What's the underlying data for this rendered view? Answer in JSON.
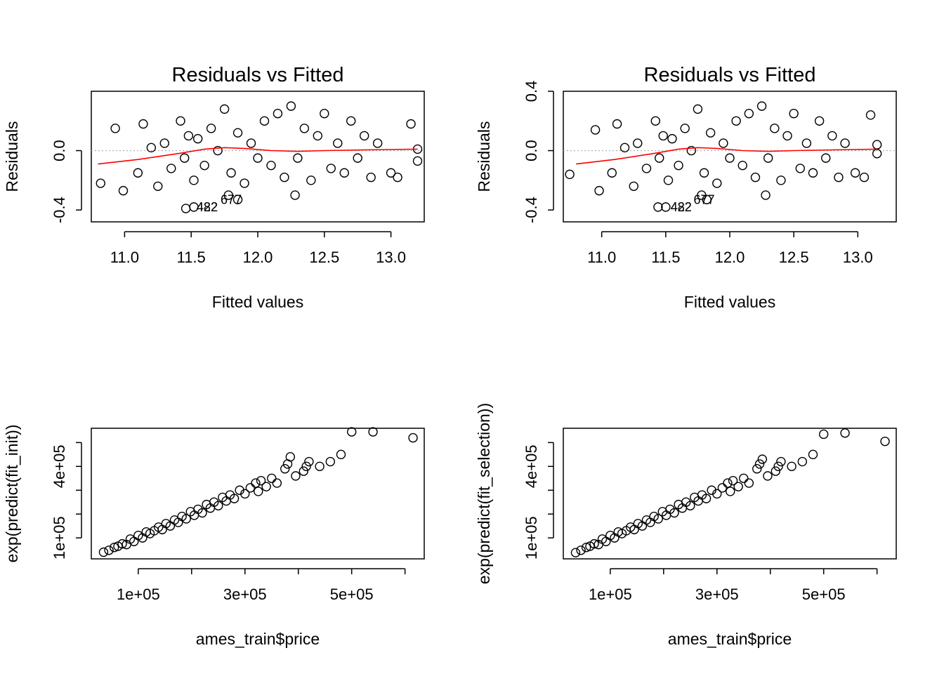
{
  "chart_data": [
    {
      "type": "scatter",
      "title": "Residuals vs Fitted",
      "xlabel": "Fitted values",
      "ylabel": "Residuals",
      "xlim": [
        10.75,
        13.25
      ],
      "ylim": [
        -0.48,
        0.4
      ],
      "xticks": [
        11.0,
        11.5,
        12.0,
        12.5,
        13.0
      ],
      "xtick_labels": [
        "11.0",
        "11.5",
        "12.0",
        "12.5",
        "13.0"
      ],
      "yticks": [
        -0.4,
        0.0
      ],
      "ytick_labels": [
        "-0.4",
        "0.0"
      ],
      "reference_line": {
        "y": 0,
        "style": "dotted",
        "color": "#aaaaaa"
      },
      "smooth": {
        "color": "#ff0000",
        "x": [
          10.8,
          11.1,
          11.4,
          11.6,
          11.75,
          11.9,
          12.1,
          12.3,
          12.5,
          12.8,
          13.2
        ],
        "y": [
          -0.09,
          -0.06,
          -0.02,
          0.01,
          0.02,
          0.015,
          0.0,
          -0.005,
          0.0,
          0.005,
          0.01
        ]
      },
      "annotations": [
        {
          "text": "677",
          "x": 11.8,
          "y": -0.36
        },
        {
          "text": "482",
          "x": 11.62,
          "y": -0.41
        },
        {
          "text": "422",
          "x": 11.62,
          "y": -0.41
        }
      ],
      "series": [
        {
          "x": [
            10.82,
            10.93,
            10.99,
            11.1,
            11.14,
            11.2,
            11.25,
            11.3,
            11.35,
            11.42,
            11.45,
            11.48,
            11.52,
            11.55,
            11.6,
            11.65,
            11.7,
            11.75,
            11.8,
            11.85,
            11.9,
            11.95,
            12.0,
            12.05,
            12.1,
            12.15,
            12.2,
            12.25,
            12.3,
            12.35,
            12.4,
            12.45,
            12.5,
            12.55,
            12.6,
            12.65,
            12.7,
            12.75,
            12.8,
            12.85,
            12.9,
            13.0,
            13.05,
            13.15,
            13.2,
            13.2,
            11.46,
            11.52,
            11.85,
            11.78,
            12.28
          ],
          "y": [
            -0.22,
            0.15,
            -0.27,
            -0.15,
            0.18,
            0.02,
            -0.24,
            0.05,
            -0.12,
            0.2,
            -0.05,
            0.1,
            -0.2,
            0.08,
            -0.1,
            0.15,
            0.0,
            0.28,
            -0.15,
            0.12,
            -0.22,
            0.05,
            -0.05,
            0.2,
            -0.1,
            0.25,
            -0.18,
            0.3,
            -0.05,
            0.15,
            -0.2,
            0.1,
            0.25,
            -0.12,
            0.05,
            -0.15,
            0.2,
            -0.05,
            0.1,
            -0.18,
            0.05,
            -0.15,
            -0.18,
            0.18,
            0.01,
            -0.07,
            -0.39,
            -0.38,
            -0.33,
            -0.3,
            -0.3
          ]
        }
      ]
    },
    {
      "type": "scatter",
      "title": "Residuals vs Fitted",
      "xlabel": "Fitted values",
      "ylabel": "Residuals",
      "xlim": [
        10.7,
        13.3
      ],
      "ylim": [
        -0.48,
        0.4
      ],
      "xticks": [
        11.0,
        11.5,
        12.0,
        12.5,
        13.0
      ],
      "xtick_labels": [
        "11.0",
        "11.5",
        "12.0",
        "12.5",
        "13.0"
      ],
      "yticks": [
        -0.4,
        0.0,
        0.4
      ],
      "ytick_labels": [
        "-0.4",
        "0.0",
        "0.4"
      ],
      "reference_line": {
        "y": 0,
        "style": "dotted",
        "color": "#aaaaaa"
      },
      "smooth": {
        "color": "#ff0000",
        "x": [
          10.8,
          11.1,
          11.4,
          11.6,
          11.75,
          11.9,
          12.1,
          12.3,
          12.5,
          12.8,
          13.15
        ],
        "y": [
          -0.09,
          -0.06,
          -0.02,
          0.01,
          0.02,
          0.015,
          0.0,
          -0.005,
          0.0,
          0.005,
          0.01
        ]
      },
      "annotations": [
        {
          "text": "677",
          "x": 11.8,
          "y": -0.36
        },
        {
          "text": "482",
          "x": 11.62,
          "y": -0.41
        },
        {
          "text": "422",
          "x": 11.62,
          "y": -0.41
        }
      ],
      "series": [
        {
          "x": [
            10.75,
            10.95,
            10.98,
            11.08,
            11.12,
            11.18,
            11.25,
            11.28,
            11.35,
            11.42,
            11.45,
            11.48,
            11.52,
            11.55,
            11.6,
            11.65,
            11.7,
            11.75,
            11.8,
            11.85,
            11.9,
            11.95,
            12.0,
            12.05,
            12.1,
            12.15,
            12.2,
            12.25,
            12.3,
            12.35,
            12.4,
            12.45,
            12.5,
            12.55,
            12.6,
            12.65,
            12.7,
            12.75,
            12.8,
            12.85,
            12.9,
            12.98,
            13.05,
            13.1,
            13.15,
            13.15,
            11.44,
            11.5,
            11.82,
            11.78,
            12.28
          ],
          "y": [
            -0.16,
            0.14,
            -0.27,
            -0.15,
            0.18,
            0.02,
            -0.24,
            0.05,
            -0.12,
            0.2,
            -0.05,
            0.1,
            -0.2,
            0.08,
            -0.1,
            0.15,
            0.0,
            0.28,
            -0.15,
            0.12,
            -0.22,
            0.05,
            -0.05,
            0.2,
            -0.1,
            0.25,
            -0.18,
            0.3,
            -0.05,
            0.15,
            -0.2,
            0.1,
            0.25,
            -0.12,
            0.05,
            -0.15,
            0.2,
            -0.05,
            0.1,
            -0.18,
            0.05,
            -0.15,
            -0.18,
            0.24,
            0.04,
            -0.02,
            -0.38,
            -0.38,
            -0.33,
            -0.3,
            -0.3
          ]
        }
      ]
    },
    {
      "type": "scatter",
      "title": "",
      "xlabel": "ames_train$price",
      "ylabel": "exp(predict(fit_init))",
      "xlim": [
        12000,
        636000
      ],
      "ylim": [
        12000,
        560000
      ],
      "xticks": [
        100000,
        200000,
        300000,
        400000,
        500000,
        600000
      ],
      "xtick_labels": [
        "1e+05",
        "",
        "3e+05",
        "",
        "5e+05",
        ""
      ],
      "yticks": [
        100000,
        200000,
        300000,
        400000,
        500000
      ],
      "ytick_labels": [
        "1e+05",
        "",
        "",
        "4e+05",
        ""
      ],
      "series": [
        {
          "x": [
            35000,
            45000,
            55000,
            62000,
            70000,
            78000,
            85000,
            92000,
            100000,
            108000,
            115000,
            122000,
            130000,
            138000,
            145000,
            152000,
            160000,
            168000,
            175000,
            182000,
            190000,
            198000,
            205000,
            212000,
            220000,
            228000,
            235000,
            242000,
            250000,
            258000,
            265000,
            272000,
            280000,
            290000,
            300000,
            310000,
            320000,
            325000,
            330000,
            340000,
            350000,
            360000,
            375000,
            380000,
            385000,
            395000,
            410000,
            415000,
            420000,
            440000,
            460000,
            480000,
            500000,
            540000,
            615000
          ],
          "y": [
            40000,
            48000,
            60000,
            65000,
            75000,
            72000,
            95000,
            85000,
            110000,
            100000,
            125000,
            118000,
            130000,
            145000,
            135000,
            160000,
            150000,
            175000,
            165000,
            190000,
            180000,
            210000,
            195000,
            220000,
            205000,
            240000,
            225000,
            250000,
            235000,
            270000,
            255000,
            280000,
            265000,
            300000,
            285000,
            310000,
            330000,
            295000,
            340000,
            315000,
            350000,
            330000,
            390000,
            410000,
            440000,
            360000,
            380000,
            400000,
            420000,
            400000,
            420000,
            450000,
            545000,
            545000,
            520000
          ]
        }
      ]
    },
    {
      "type": "scatter",
      "title": "",
      "xlabel": "ames_train$price",
      "ylabel": "exp(predict(fit_selection))",
      "xlim": [
        12000,
        636000
      ],
      "ylim": [
        12000,
        560000
      ],
      "xticks": [
        100000,
        200000,
        300000,
        400000,
        500000,
        600000
      ],
      "xtick_labels": [
        "1e+05",
        "",
        "3e+05",
        "",
        "5e+05",
        ""
      ],
      "yticks": [
        100000,
        200000,
        300000,
        400000,
        500000
      ],
      "ytick_labels": [
        "1e+05",
        "",
        "",
        "4e+05",
        ""
      ],
      "series": [
        {
          "x": [
            35000,
            45000,
            55000,
            62000,
            70000,
            78000,
            85000,
            92000,
            100000,
            108000,
            115000,
            122000,
            130000,
            138000,
            145000,
            152000,
            160000,
            168000,
            175000,
            182000,
            190000,
            198000,
            205000,
            212000,
            220000,
            228000,
            235000,
            242000,
            250000,
            258000,
            265000,
            272000,
            280000,
            290000,
            300000,
            310000,
            320000,
            325000,
            330000,
            340000,
            350000,
            360000,
            375000,
            380000,
            385000,
            395000,
            410000,
            415000,
            420000,
            440000,
            460000,
            480000,
            500000,
            540000,
            615000
          ],
          "y": [
            38000,
            48000,
            60000,
            65000,
            75000,
            72000,
            95000,
            85000,
            110000,
            100000,
            125000,
            118000,
            130000,
            145000,
            135000,
            160000,
            150000,
            175000,
            165000,
            190000,
            180000,
            210000,
            195000,
            220000,
            205000,
            240000,
            225000,
            250000,
            235000,
            270000,
            255000,
            280000,
            265000,
            300000,
            285000,
            310000,
            330000,
            295000,
            340000,
            315000,
            350000,
            330000,
            390000,
            410000,
            430000,
            360000,
            380000,
            400000,
            420000,
            400000,
            420000,
            450000,
            535000,
            540000,
            505000
          ]
        }
      ]
    }
  ]
}
